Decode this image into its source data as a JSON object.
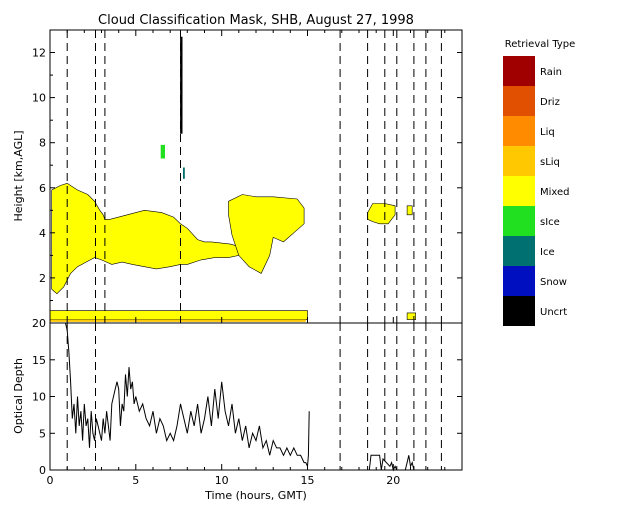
{
  "chart_data": [
    {
      "type": "heatmap",
      "title": "Cloud Classification Mask, SHB, August 27, 1998",
      "xlabel": "",
      "ylabel": "Height [km,AGL]",
      "xlim": [
        0,
        24
      ],
      "ylim": [
        0,
        13
      ],
      "yticks": [
        2,
        4,
        6,
        8,
        10,
        12
      ],
      "legend": {
        "title": "Retrieval Type",
        "placement": "right",
        "entries": [
          {
            "name": "Rain",
            "color": "#a00000"
          },
          {
            "name": "Driz",
            "color": "#e05000"
          },
          {
            "name": "Liq",
            "color": "#ff8c00"
          },
          {
            "name": "sLiq",
            "color": "#ffc800"
          },
          {
            "name": "Mixed",
            "color": "#ffff00"
          },
          {
            "name": "sIce",
            "color": "#20e020"
          },
          {
            "name": "Ice",
            "color": "#007070"
          },
          {
            "name": "Snow",
            "color": "#0010c0"
          },
          {
            "name": "Uncrt",
            "color": "#000000"
          }
        ]
      },
      "vertical_dashed_lines_hours": [
        1.0,
        2.65,
        3.2,
        7.6,
        16.9,
        18.5,
        19.5,
        20.2,
        21.2,
        21.9,
        22.8
      ],
      "regions": [
        {
          "type": "Mixed",
          "x": [
            0.1,
            0.6,
            1.0,
            1.6,
            2.2,
            2.6,
            2.9,
            3.1,
            3.2,
            3.5,
            4.5,
            5.5,
            6.5,
            7.2,
            7.6,
            8.0,
            8.6,
            9.0,
            9.4,
            10.5,
            11.0,
            11.0,
            10.4,
            9.6,
            8.8,
            8.0,
            7.6,
            7.0,
            6.2,
            5.5,
            4.8,
            4.2,
            3.6,
            3.0,
            2.6,
            2.1,
            1.6,
            1.2,
            0.8,
            0.4,
            0.1
          ],
          "y_top": [
            5.9,
            6.1,
            6.2,
            5.9,
            5.7,
            5.4,
            5.0,
            4.8,
            4.6,
            4.6,
            4.8,
            5.0,
            4.9,
            4.7,
            4.4,
            4.2,
            3.7,
            3.6,
            3.6,
            3.5,
            3.4,
            3.0,
            2.9,
            2.9,
            2.8,
            2.6,
            2.6,
            2.5,
            2.4,
            2.5,
            2.6,
            2.7,
            2.6,
            2.8,
            2.9,
            2.7,
            2.5,
            2.2,
            1.6,
            1.3,
            1.5
          ]
        },
        {
          "type": "Mixed",
          "x": [
            10.4,
            11.2,
            12.0,
            13.0,
            14.4,
            14.8,
            14.8,
            14.2,
            13.6,
            13.0,
            12.8,
            12.3,
            11.6,
            11.0,
            10.6,
            10.4
          ],
          "y_top": [
            5.4,
            5.7,
            5.6,
            5.6,
            5.5,
            5.1,
            4.4,
            4.0,
            3.6,
            3.8,
            3.0,
            2.2,
            2.5,
            3.0,
            3.9,
            4.8
          ]
        },
        {
          "type": "Mixed",
          "x": [
            18.5,
            18.8,
            19.5,
            20.1,
            20.1,
            19.7,
            19.2,
            18.8,
            18.5
          ],
          "y_top": [
            4.9,
            5.3,
            5.3,
            5.2,
            4.8,
            4.4,
            4.4,
            4.5,
            4.6
          ]
        },
        {
          "type": "Mixed",
          "x": [
            20.8,
            21.1,
            21.1,
            20.8
          ],
          "y_top": [
            5.2,
            5.2,
            4.8,
            4.8
          ]
        },
        {
          "type": "Mixed",
          "x": [
            0.0,
            15.0,
            15.0,
            0.0
          ],
          "y_top": [
            0.55,
            0.55,
            0.15,
            0.15
          ]
        },
        {
          "type": "Mixed",
          "x": [
            20.8,
            21.3,
            21.3,
            20.8
          ],
          "y_top": [
            0.45,
            0.45,
            0.15,
            0.15
          ]
        },
        {
          "type": "sLiq",
          "x": [
            0.0,
            14.9,
            14.9,
            0.0
          ],
          "y_top": [
            0.15,
            0.15,
            0.05,
            0.05
          ]
        },
        {
          "type": "sIce",
          "x": [
            6.45,
            6.7,
            6.7,
            6.45
          ],
          "y_top": [
            7.9,
            7.9,
            7.3,
            7.3
          ]
        },
        {
          "type": "Uncrt",
          "x": [
            7.58,
            7.72,
            7.72,
            7.58
          ],
          "y_top": [
            12.7,
            12.7,
            8.4,
            8.4
          ]
        },
        {
          "type": "Ice",
          "x": [
            7.75,
            7.85,
            7.85,
            7.75
          ],
          "y_top": [
            6.9,
            6.9,
            6.4,
            6.4
          ]
        }
      ]
    },
    {
      "type": "line",
      "title": "",
      "xlabel": "Time (hours, GMT)",
      "ylabel": "Optical Depth",
      "xlim": [
        0,
        24
      ],
      "ylim": [
        0,
        20
      ],
      "xticks": [
        0,
        5,
        10,
        15,
        20
      ],
      "yticks": [
        0,
        5,
        10,
        15,
        20
      ],
      "vertical_dashed_lines_hours": [
        1.0,
        2.65,
        16.9,
        18.5,
        19.5,
        20.2,
        21.2,
        21.9,
        22.8
      ],
      "series": [
        {
          "values_x": [
            0.9,
            1.0,
            1.1,
            1.2,
            1.3,
            1.4,
            1.5,
            1.6,
            1.7,
            1.8,
            1.9,
            2.0,
            2.1,
            2.2,
            2.3,
            2.4,
            2.5,
            2.6,
            2.7,
            2.8,
            2.9,
            3.0,
            3.1,
            3.2,
            3.3,
            3.4,
            3.5,
            3.6,
            3.7,
            3.8,
            3.9,
            4.0,
            4.1,
            4.2,
            4.3,
            4.4,
            4.5,
            4.6,
            4.7,
            4.8,
            4.9,
            5.0,
            5.2,
            5.4,
            5.6,
            5.8,
            6.0,
            6.2,
            6.4,
            6.6,
            6.8,
            7.0,
            7.2,
            7.4,
            7.6,
            7.8,
            8.0,
            8.2,
            8.4,
            8.6,
            8.8,
            9.0,
            9.2,
            9.4,
            9.6,
            9.8,
            10.0,
            10.2,
            10.4,
            10.6,
            10.8,
            11.0,
            11.2,
            11.4,
            11.6,
            11.8,
            12.0,
            12.2,
            12.4,
            12.6,
            12.8,
            13.0,
            13.2,
            13.4,
            13.6,
            13.8,
            14.0,
            14.2,
            14.4,
            14.6,
            14.8,
            14.9,
            15.0,
            15.05,
            15.1
          ],
          "values_y": [
            20,
            19,
            16,
            12,
            7,
            9,
            5,
            10,
            6,
            8,
            4,
            9,
            6,
            7,
            3,
            8,
            5,
            4,
            7,
            6,
            5,
            4,
            7,
            5,
            8,
            6,
            4,
            9,
            10,
            11,
            12,
            11,
            6,
            9,
            8,
            13,
            10,
            14,
            11,
            12,
            9,
            10,
            8,
            9,
            7,
            6,
            8,
            5,
            7,
            6,
            4,
            5,
            4,
            6,
            9,
            7,
            5,
            8,
            6,
            9,
            5,
            7,
            10,
            6,
            11,
            7,
            12,
            8,
            6,
            9,
            5,
            7,
            4,
            6,
            3,
            5,
            4,
            6,
            3,
            4,
            2,
            4,
            3,
            3,
            2,
            3,
            2,
            3,
            2,
            2,
            1,
            1,
            0.5,
            2,
            8
          ]
        },
        {
          "values_x": [
            18.6,
            18.7,
            19.2,
            19.3,
            19.4,
            19.8,
            19.9,
            20.0,
            20.1,
            20.2,
            20.7,
            20.8,
            20.9,
            21.0,
            21.1,
            21.2
          ],
          "values_y": [
            0,
            2,
            2,
            0,
            1.5,
            0.5,
            1,
            0,
            0.5,
            0,
            0,
            1,
            2,
            0.5,
            1,
            0
          ]
        }
      ]
    }
  ]
}
